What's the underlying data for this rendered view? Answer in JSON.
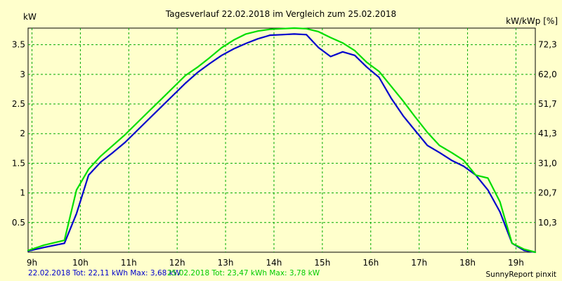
{
  "chart_data": {
    "type": "line",
    "title": "Tagesverlauf 22.02.2018 im Vergleich zum 25.02.2018",
    "ylabel_left": "kW",
    "ylabel_right": "kW/kWp [%]",
    "xlabel": "",
    "x_ticks": [
      "9h",
      "10h",
      "11h",
      "12h",
      "13h",
      "14h",
      "15h",
      "16h",
      "17h",
      "18h",
      "19h"
    ],
    "y_ticks_left": [
      "0.5",
      "1",
      "1.5",
      "2",
      "2.5",
      "3",
      "3.5"
    ],
    "y_ticks_right": [
      "10,3",
      "20,7",
      "31,0",
      "41,3",
      "51,7",
      "62,0",
      "72,3"
    ],
    "ylim": [
      0,
      3.78
    ],
    "xlim": [
      8.92,
      19.4
    ],
    "grid": true,
    "series": [
      {
        "name": "22.02.2018",
        "color": "#0000cc",
        "x": [
          8.92,
          9.25,
          9.67,
          9.92,
          10.17,
          10.42,
          10.67,
          10.92,
          11.17,
          11.42,
          11.67,
          11.92,
          12.17,
          12.42,
          12.67,
          12.92,
          13.17,
          13.42,
          13.67,
          13.92,
          14.17,
          14.42,
          14.67,
          14.92,
          15.17,
          15.42,
          15.67,
          15.92,
          16.17,
          16.42,
          16.67,
          16.92,
          17.17,
          17.42,
          17.67,
          17.92,
          18.17,
          18.42,
          18.67,
          18.92,
          19.17,
          19.4
        ],
        "y": [
          0.02,
          0.08,
          0.15,
          0.65,
          1.3,
          1.52,
          1.68,
          1.85,
          2.05,
          2.25,
          2.45,
          2.65,
          2.85,
          3.03,
          3.18,
          3.32,
          3.43,
          3.52,
          3.6,
          3.66,
          3.67,
          3.68,
          3.67,
          3.45,
          3.3,
          3.38,
          3.32,
          3.12,
          2.95,
          2.6,
          2.3,
          2.05,
          1.8,
          1.68,
          1.55,
          1.45,
          1.3,
          1.05,
          0.68,
          0.15,
          0.03,
          0.0
        ]
      },
      {
        "name": "25.02.2018",
        "color": "#00dd00",
        "x": [
          8.92,
          9.25,
          9.67,
          9.92,
          10.17,
          10.42,
          10.67,
          10.92,
          11.17,
          11.42,
          11.67,
          11.92,
          12.17,
          12.42,
          12.67,
          12.92,
          13.17,
          13.42,
          13.67,
          13.92,
          14.17,
          14.42,
          14.67,
          14.92,
          15.17,
          15.42,
          15.67,
          15.92,
          16.17,
          16.42,
          16.67,
          16.92,
          17.17,
          17.42,
          17.67,
          17.92,
          18.17,
          18.42,
          18.67,
          18.92,
          19.17,
          19.4
        ],
        "y": [
          0.03,
          0.12,
          0.2,
          1.05,
          1.4,
          1.62,
          1.8,
          1.98,
          2.18,
          2.38,
          2.58,
          2.78,
          2.98,
          3.12,
          3.28,
          3.45,
          3.58,
          3.68,
          3.73,
          3.76,
          3.77,
          3.78,
          3.77,
          3.72,
          3.62,
          3.53,
          3.4,
          3.2,
          3.05,
          2.8,
          2.55,
          2.28,
          2.02,
          1.8,
          1.68,
          1.55,
          1.3,
          1.25,
          0.85,
          0.15,
          0.05,
          0.0
        ]
      }
    ]
  },
  "footer": {
    "legend_blue": "22.02.2018 Tot: 22,11 kWh Max: 3,68 kW",
    "legend_green": "25.02.2018 Tot: 23,47 kWh Max: 3,78 kW",
    "credit": "SunnyReport pinxit"
  }
}
